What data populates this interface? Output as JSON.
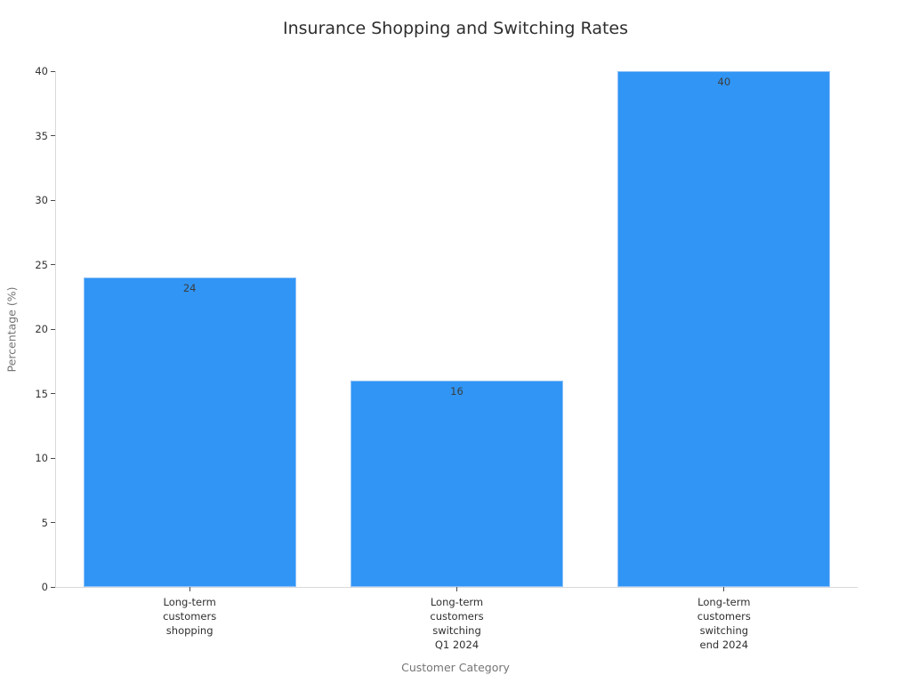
{
  "chart_data": {
    "type": "bar",
    "title": "Insurance Shopping and Switching Rates",
    "xlabel": "Customer Category",
    "ylabel": "Percentage (%)",
    "categories": [
      "Long-term\ncustomers\nshopping",
      "Long-term\ncustomers\nswitching\nQ1 2024",
      "Long-term\ncustomers\nswitching\nend 2024"
    ],
    "values": [
      24,
      16,
      40
    ],
    "value_labels": [
      "24",
      "16",
      "40"
    ],
    "ylim": [
      0,
      40
    ],
    "yticks": [
      0,
      5,
      10,
      15,
      20,
      25,
      30,
      35,
      40
    ],
    "grid": false,
    "legend": null,
    "bar_color": "#3095f5",
    "bar_edge_color": "#8ec1f8"
  },
  "colors": {
    "background": "#ffffff",
    "axis_line": "#d9d9d9",
    "tick_mark": "#4a4a4a",
    "tick_label": "#333333",
    "value_label": "#3d3d3d",
    "axis_title": "#757575",
    "title": "#2e2e2e"
  }
}
